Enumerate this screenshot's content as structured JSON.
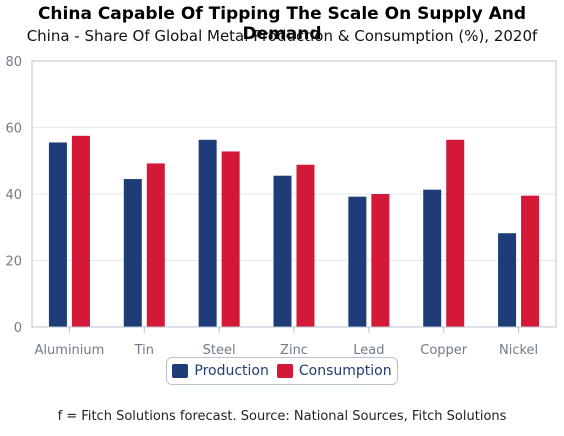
{
  "title": "China Capable Of Tipping The Scale On Supply And Demand",
  "subtitle": "China - Share Of Global Metal Production & Consumption (%), 2020f",
  "footnote": "f = Fitch Solutions forecast. Source: National Sources, Fitch Solutions",
  "colors": {
    "production": "#1e3c78",
    "consumption": "#d31838",
    "grid": "#e6e9ee",
    "axis": "#b9c3cf",
    "tick_text": "#707c8a"
  },
  "chart_data": {
    "type": "bar",
    "title": "China Capable Of Tipping The Scale On Supply And Demand",
    "subtitle": "China - Share Of Global Metal Production & Consumption (%), 2020f",
    "xlabel": "",
    "ylabel": "",
    "ylim": [
      0,
      80
    ],
    "yticks": [
      0,
      20,
      40,
      60,
      80
    ],
    "grid": true,
    "legend": "bottom",
    "categories": [
      "Aluminium",
      "Tin",
      "Steel",
      "Zinc",
      "Lead",
      "Copper",
      "Nickel"
    ],
    "series": [
      {
        "name": "Production",
        "values": [
          55.5,
          44.5,
          56.3,
          45.5,
          39.2,
          41.3,
          28.2
        ]
      },
      {
        "name": "Consumption",
        "values": [
          57.5,
          49.2,
          52.8,
          48.8,
          40.0,
          56.3,
          39.5
        ]
      }
    ]
  }
}
